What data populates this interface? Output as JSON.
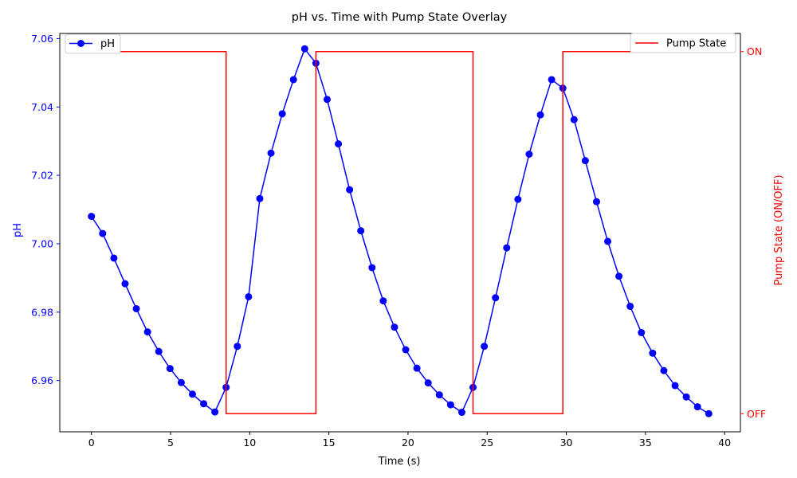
{
  "chart_data": {
    "type": "line",
    "title": "pH vs. Time with Pump State Overlay",
    "xlabel": "Time (s)",
    "ylabel_left": "pH",
    "ylabel_right": "Pump State (ON/OFF)",
    "xlim": [
      -2,
      41
    ],
    "ylim_left": [
      6.945,
      7.0615
    ],
    "ylim_right": [
      -0.05,
      1.05
    ],
    "x_ticks": [
      0,
      5,
      10,
      15,
      20,
      25,
      30,
      35,
      40
    ],
    "y_ticks_left": [
      6.96,
      6.98,
      7.0,
      7.02,
      7.04,
      7.06
    ],
    "y_ticks_left_labels": [
      "6.96",
      "6.98",
      "7.00",
      "7.02",
      "7.04",
      "7.06"
    ],
    "y_ticks_right": [
      0,
      1
    ],
    "y_ticks_right_labels": [
      "OFF",
      "ON"
    ],
    "grid": false,
    "colors": {
      "ph": "#0000ff",
      "pump": "#ff0000"
    },
    "series": [
      {
        "name": "pH",
        "axis": "left",
        "marker": "circle",
        "x": [
          0,
          0.709,
          1.418,
          2.127,
          2.836,
          3.545,
          4.255,
          4.964,
          5.673,
          6.382,
          7.091,
          7.8,
          8.509,
          9.218,
          9.927,
          10.636,
          11.345,
          12.055,
          12.764,
          13.473,
          14.182,
          14.891,
          15.6,
          16.309,
          17.018,
          17.727,
          18.436,
          19.145,
          19.855,
          20.564,
          21.273,
          21.982,
          22.691,
          23.4,
          24.109,
          24.818,
          25.527,
          26.236,
          26.945,
          27.655,
          28.364,
          29.073,
          29.782,
          30.491,
          31.2,
          31.909,
          32.618,
          33.327,
          34.036,
          34.745,
          35.455,
          36.164,
          36.873,
          37.582,
          38.291,
          39.0
        ],
        "y": [
          7.008,
          7.003,
          6.9958,
          6.9883,
          6.981,
          6.9742,
          6.9685,
          6.9635,
          6.9594,
          6.956,
          6.9532,
          6.9508,
          6.958,
          6.97,
          6.9845,
          7.0132,
          7.0265,
          7.038,
          7.048,
          7.057,
          7.0528,
          7.0422,
          7.0292,
          7.0158,
          7.0038,
          6.993,
          6.9833,
          6.9756,
          6.969,
          6.9636,
          6.9593,
          6.9558,
          6.9529,
          6.9507,
          6.958,
          6.97,
          6.9842,
          6.9988,
          7.013,
          7.0262,
          7.0377,
          7.048,
          7.0455,
          7.0363,
          7.0243,
          7.0123,
          7.0007,
          6.9905,
          6.9817,
          6.974,
          6.968,
          6.9629,
          6.9585,
          6.9552,
          6.9523,
          6.9503
        ]
      },
      {
        "name": "Pump State",
        "axis": "right",
        "type": "step",
        "x": [
          0,
          8.509,
          8.509,
          14.182,
          14.182,
          24.109,
          24.109,
          29.782,
          29.782,
          39.0
        ],
        "y": [
          1,
          1,
          0,
          0,
          1,
          1,
          0,
          0,
          1,
          1
        ]
      }
    ],
    "legend_left": {
      "placement": "upper-left",
      "label": "pH"
    },
    "legend_right": {
      "placement": "upper-right",
      "label": "Pump State"
    }
  }
}
